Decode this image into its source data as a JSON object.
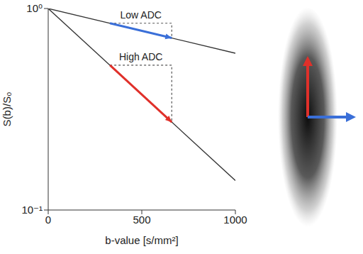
{
  "chart_data": {
    "type": "line",
    "log": "y",
    "xlabel": "b-value [s/mm²]",
    "ylabel": "S(b)/S₀",
    "xlim": [
      0,
      1000
    ],
    "xticks": [
      0,
      500,
      1000
    ],
    "ylim": [
      0.1,
      1
    ],
    "yticks": [
      {
        "value": 0.1,
        "label": "10⁻¹"
      },
      {
        "value": 1,
        "label": "10⁰"
      }
    ],
    "series": [
      {
        "color": "#333333",
        "x": [
          0,
          1000
        ],
        "values": [
          1,
          0.6
        ]
      },
      {
        "color": "#333333",
        "x": [
          0,
          1000
        ],
        "values": [
          1,
          0.14
        ]
      }
    ],
    "annotations": [
      {
        "text": "Low ADC",
        "color": "#3a6fd8",
        "marker": "arrow",
        "x": [
          330,
          660
        ],
        "values": [
          0.845,
          0.714
        ]
      },
      {
        "text": "High ADC",
        "color": "#e0302a",
        "marker": "arrow",
        "x": [
          330,
          660
        ],
        "values": [
          0.523,
          0.273
        ]
      }
    ]
  }
}
